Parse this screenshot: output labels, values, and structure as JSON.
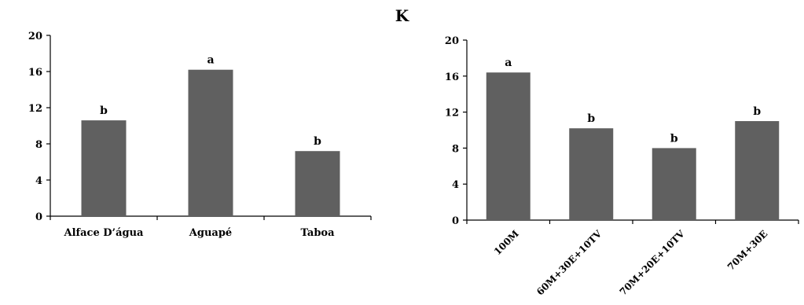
{
  "figure": {
    "title": "K"
  },
  "chart_data": [
    {
      "type": "bar",
      "categories": [
        "Alface D’água",
        "Aguapé",
        "Taboa"
      ],
      "values": [
        10.6,
        16.2,
        7.2
      ],
      "annotations": [
        "b",
        "a",
        "b"
      ],
      "ylim": [
        0,
        20
      ],
      "yticks": [
        "0",
        "4",
        "8",
        "12",
        "16",
        "20"
      ],
      "bar_color": "#606060",
      "grid": false
    },
    {
      "type": "bar",
      "categories": [
        "100M",
        "60M+30E+10TV",
        "70M+20E+10TV",
        "70M+30E"
      ],
      "values": [
        16.4,
        10.2,
        8.0,
        11.0
      ],
      "annotations": [
        "a",
        "b",
        "b",
        "b"
      ],
      "ylim": [
        0,
        20
      ],
      "yticks": [
        "0",
        "4",
        "8",
        "12",
        "16",
        "20"
      ],
      "bar_color": "#606060",
      "grid": false
    }
  ]
}
